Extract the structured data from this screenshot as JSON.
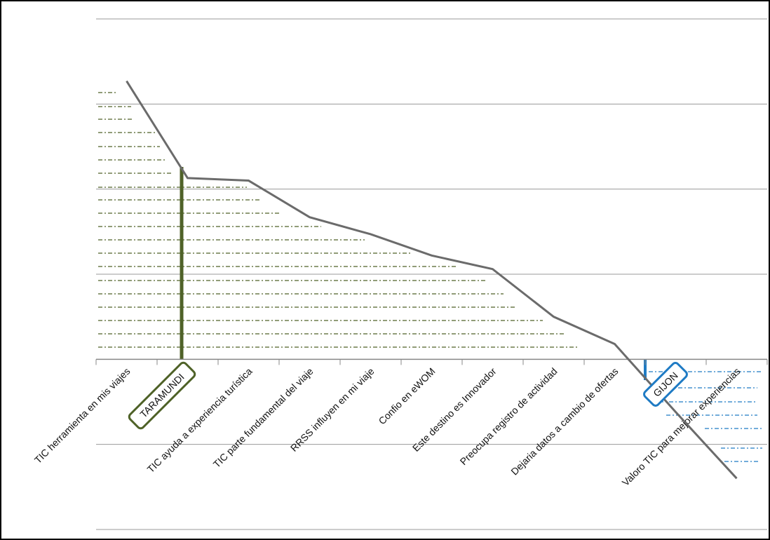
{
  "chart_data": {
    "type": "line",
    "categories": [
      "TIC herramienta en mis viajes",
      null,
      "TIC ayuda a experiencia turística",
      "TIC parte fundamental del viaje",
      "RRSS influyen en mi viaje",
      "Confio en eWOM",
      "Este destino es Innovador",
      "Preocupa registro de actividad",
      "Dejaria datos a cambio de ofertas",
      null,
      "Valoro TIC para mejorar experiencias"
    ],
    "series": [
      {
        "name": null,
        "color": "#6b6b6b",
        "values": [
          3.27,
          2.13,
          2.1,
          1.67,
          1.47,
          1.22,
          1.06,
          0.5,
          0.18,
          -0.62,
          -1.4
        ]
      }
    ],
    "ylim": [
      -2,
      4
    ],
    "yticks": [
      -2,
      -1,
      0,
      1,
      2,
      3,
      4
    ],
    "grid": true,
    "annotations": [
      "TARAMUNDI",
      "GIJON"
    ]
  }
}
